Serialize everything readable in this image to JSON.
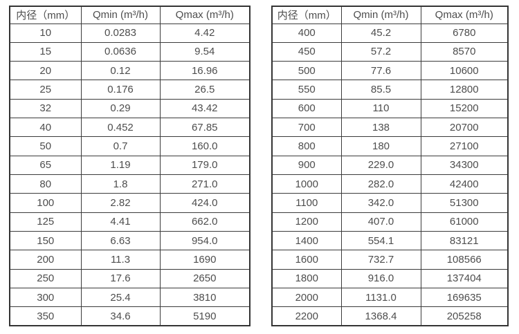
{
  "headers": [
    "内径（mm）",
    "Qmin (m³/h)",
    "Qmax (m³/h)"
  ],
  "columns": [
    "inner-diameter-mm",
    "qmin-m3h",
    "qmax-m3h"
  ],
  "tables": {
    "left": {
      "rows": [
        [
          "10",
          "0.0283",
          "4.42"
        ],
        [
          "15",
          "0.0636",
          "9.54"
        ],
        [
          "20",
          "0.12",
          "16.96"
        ],
        [
          "25",
          "0.176",
          "26.5"
        ],
        [
          "32",
          "0.29",
          "43.42"
        ],
        [
          "40",
          "0.452",
          "67.85"
        ],
        [
          "50",
          "0.7",
          "160.0"
        ],
        [
          "65",
          "1.19",
          "179.0"
        ],
        [
          "80",
          "1.8",
          "271.0"
        ],
        [
          "100",
          "2.82",
          "424.0"
        ],
        [
          "125",
          "4.41",
          "662.0"
        ],
        [
          "150",
          "6.63",
          "954.0"
        ],
        [
          "200",
          "11.3",
          "1690"
        ],
        [
          "250",
          "17.6",
          "2650"
        ],
        [
          "300",
          "25.4",
          "3810"
        ],
        [
          "350",
          "34.6",
          "5190"
        ]
      ]
    },
    "right": {
      "rows": [
        [
          "400",
          "45.2",
          "6780"
        ],
        [
          "450",
          "57.2",
          "8570"
        ],
        [
          "500",
          "77.6",
          "10600"
        ],
        [
          "550",
          "85.5",
          "12800"
        ],
        [
          "600",
          "110",
          "15200"
        ],
        [
          "700",
          "138",
          "20700"
        ],
        [
          "800",
          "180",
          "27100"
        ],
        [
          "900",
          "229.0",
          "34300"
        ],
        [
          "1000",
          "282.0",
          "42400"
        ],
        [
          "1100",
          "342.0",
          "51300"
        ],
        [
          "1200",
          "407.0",
          "61000"
        ],
        [
          "1400",
          "554.1",
          "83121"
        ],
        [
          "1600",
          "732.7",
          "108566"
        ],
        [
          "1800",
          "916.0",
          "137404"
        ],
        [
          "2000",
          "1131.0",
          "169635"
        ],
        [
          "2200",
          "1368.4",
          "205258"
        ]
      ]
    }
  },
  "colors": {
    "border": "#333333",
    "text": "#4d4d4d",
    "background": "#ffffff"
  }
}
